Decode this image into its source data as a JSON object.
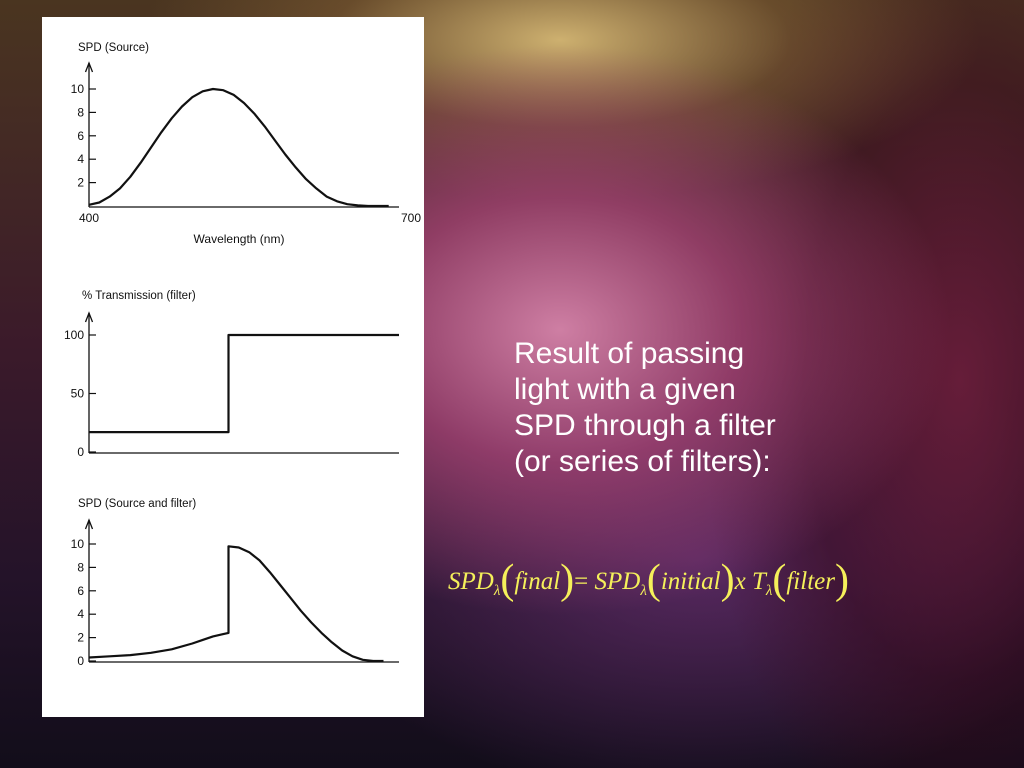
{
  "slide": {
    "description_lines": [
      "Result of passing",
      "light with a given",
      "SPD through a filter",
      "(or series of filters):"
    ],
    "equation": {
      "term1": "SPD",
      "sub1": "λ",
      "arg1": "final",
      "equals": "=",
      "term2": "SPD",
      "sub2": "λ",
      "arg2": "initial",
      "times": "x",
      "term3": "T",
      "sub3": "λ",
      "arg3": "filter",
      "open_paren": "(",
      "close_paren": ")"
    }
  },
  "colors": {
    "equation": "#f5f05a",
    "text": "#ffffff",
    "panel": "#ffffff",
    "line": "#111111"
  },
  "chart_data": [
    {
      "type": "line",
      "title": "SPD (Source)",
      "xlabel": "Wavelength (nm)",
      "ylabel": "",
      "x_tick_labels": [
        "400",
        "700"
      ],
      "y_ticks": [
        2,
        4,
        6,
        8,
        10
      ],
      "y_tick_labels": [
        "2",
        "4",
        "6",
        "8",
        "10"
      ],
      "xlim": [
        400,
        700
      ],
      "ylim": [
        0,
        10
      ],
      "grid": false,
      "series": [
        {
          "x": [
            400,
            410,
            420,
            430,
            440,
            450,
            460,
            470,
            480,
            490,
            500,
            510,
            520,
            530,
            540,
            550,
            560,
            570,
            580,
            590,
            600,
            610,
            620,
            630,
            640,
            650,
            660,
            670,
            680,
            690
          ],
          "values": [
            0.1,
            0.3,
            0.8,
            1.5,
            2.5,
            3.7,
            5.0,
            6.3,
            7.5,
            8.5,
            9.3,
            9.8,
            10.0,
            9.9,
            9.5,
            8.8,
            7.9,
            6.8,
            5.6,
            4.4,
            3.3,
            2.3,
            1.5,
            0.8,
            0.4,
            0.15,
            0.05,
            0.0,
            0.0,
            0.0
          ]
        }
      ]
    },
    {
      "type": "line",
      "title": "% Transmission (filter)",
      "xlabel": "",
      "ylabel": "",
      "y_ticks": [
        0,
        50,
        100
      ],
      "y_tick_labels": [
        "0",
        "50",
        "100"
      ],
      "xlim": [
        400,
        700
      ],
      "ylim": [
        0,
        100
      ],
      "grid": false,
      "series": [
        {
          "x": [
            400,
            535,
            535,
            700
          ],
          "values": [
            17,
            17,
            100,
            100
          ]
        }
      ]
    },
    {
      "type": "line",
      "title": "SPD (Source and filter)",
      "xlabel": "",
      "ylabel": "",
      "y_ticks": [
        0,
        2,
        4,
        6,
        8,
        10
      ],
      "y_tick_labels": [
        "0",
        "2",
        "4",
        "6",
        "8",
        "10"
      ],
      "xlim": [
        400,
        700
      ],
      "ylim": [
        0,
        10
      ],
      "grid": false,
      "series": [
        {
          "x": [
            400,
            420,
            440,
            460,
            480,
            500,
            510,
            520,
            530,
            535,
            535,
            545,
            555,
            565,
            575,
            585,
            595,
            605,
            615,
            625,
            635,
            645,
            655,
            665,
            675,
            685
          ],
          "values": [
            0.3,
            0.4,
            0.5,
            0.7,
            1.0,
            1.5,
            1.8,
            2.1,
            2.3,
            2.4,
            9.8,
            9.7,
            9.3,
            8.6,
            7.6,
            6.5,
            5.4,
            4.3,
            3.3,
            2.4,
            1.6,
            0.9,
            0.4,
            0.1,
            0.0,
            0.0
          ]
        }
      ]
    }
  ]
}
